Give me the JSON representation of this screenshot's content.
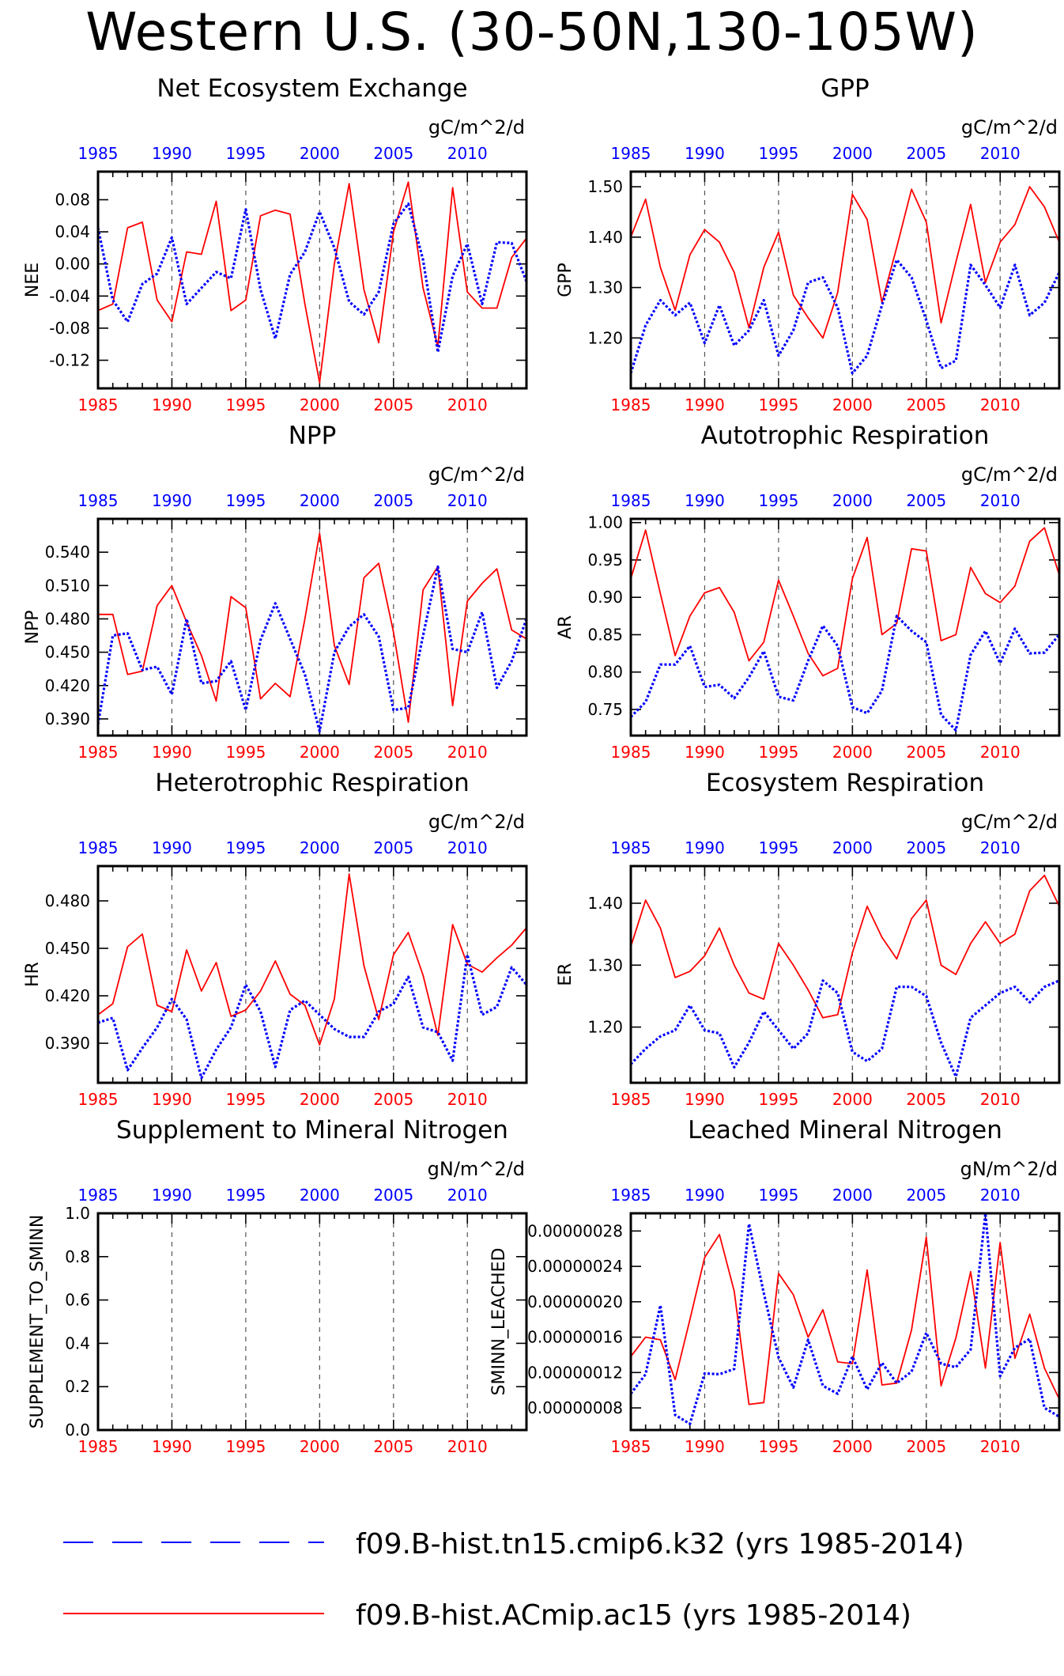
{
  "figure": {
    "title": "Western U.S. (30-50N,130-105W)",
    "colors": {
      "ctrl": "#0000ff",
      "expt": "#ff0000",
      "axis": "#000000",
      "grid": "#555555"
    }
  },
  "legend": [
    {
      "label": "f09.B-hist.tn15.cmip6.k32 (yrs 1985-2014)",
      "color": "#0000ff",
      "style": "dashed"
    },
    {
      "label": "f09.B-hist.ACmip.ac15 (yrs 1985-2014)",
      "color": "#ff0000",
      "style": "solid"
    }
  ],
  "chart_data": [
    {
      "type": "line",
      "title": "Net Ecosystem Exchange",
      "ylabel": "NEE",
      "units": "gC/m^2/d",
      "xlim": [
        1985,
        2014
      ],
      "ylim": [
        -0.155,
        0.115
      ],
      "yticks": [
        0.08,
        0.04,
        0.0,
        -0.04,
        -0.08,
        -0.12
      ],
      "ytick_labels": [
        "0.08",
        "0.04",
        "0.00",
        "-0.04",
        "-0.08",
        "-0.12"
      ],
      "x": [
        1985,
        1986,
        1987,
        1988,
        1989,
        1990,
        1991,
        1992,
        1993,
        1994,
        1995,
        1996,
        1997,
        1998,
        1999,
        2000,
        2001,
        2002,
        2003,
        2004,
        2005,
        2006,
        2007,
        2008,
        2009,
        2010,
        2011,
        2012,
        2013,
        2014
      ],
      "series": [
        {
          "color": "#ff0000",
          "style": "solid",
          "values": [
            -0.058,
            -0.05,
            0.045,
            0.052,
            -0.045,
            -0.072,
            0.015,
            0.012,
            0.078,
            -0.058,
            -0.045,
            0.06,
            0.067,
            0.062,
            -0.05,
            -0.148,
            0.0,
            0.1,
            -0.032,
            -0.098,
            0.04,
            0.102,
            -0.03,
            -0.103,
            0.095,
            -0.035,
            -0.055,
            -0.055,
            0.008,
            0.032
          ]
        },
        {
          "color": "#0000ff",
          "style": "dotted",
          "values": [
            0.045,
            -0.045,
            -0.072,
            -0.025,
            -0.012,
            0.033,
            -0.05,
            -0.03,
            -0.01,
            -0.018,
            0.068,
            -0.032,
            -0.093,
            -0.013,
            0.015,
            0.065,
            0.02,
            -0.047,
            -0.063,
            -0.035,
            0.05,
            0.075,
            0.005,
            -0.11,
            -0.015,
            0.025,
            -0.05,
            0.027,
            0.026,
            -0.022
          ]
        }
      ]
    },
    {
      "type": "line",
      "title": "GPP",
      "ylabel": "GPP",
      "units": "gC/m^2/d",
      "xlim": [
        1985,
        2014
      ],
      "ylim": [
        1.1,
        1.53
      ],
      "yticks": [
        1.5,
        1.4,
        1.3,
        1.2
      ],
      "ytick_labels": [
        "1.50",
        "1.40",
        "1.30",
        "1.20"
      ],
      "x": [
        1985,
        1986,
        1987,
        1988,
        1989,
        1990,
        1991,
        1992,
        1993,
        1994,
        1995,
        1996,
        1997,
        1998,
        1999,
        2000,
        2001,
        2002,
        2003,
        2004,
        2005,
        2006,
        2007,
        2008,
        2009,
        2010,
        2011,
        2012,
        2013,
        2014
      ],
      "series": [
        {
          "color": "#ff0000",
          "style": "solid",
          "values": [
            1.4,
            1.475,
            1.34,
            1.255,
            1.365,
            1.415,
            1.39,
            1.33,
            1.22,
            1.34,
            1.41,
            1.285,
            1.24,
            1.2,
            1.29,
            1.485,
            1.435,
            1.27,
            1.38,
            1.495,
            1.43,
            1.23,
            1.35,
            1.465,
            1.31,
            1.39,
            1.425,
            1.5,
            1.46,
            1.39
          ]
        },
        {
          "color": "#0000ff",
          "style": "dotted",
          "values": [
            1.13,
            1.225,
            1.275,
            1.245,
            1.27,
            1.19,
            1.265,
            1.185,
            1.215,
            1.275,
            1.165,
            1.215,
            1.31,
            1.32,
            1.26,
            1.13,
            1.165,
            1.265,
            1.355,
            1.32,
            1.235,
            1.14,
            1.155,
            1.345,
            1.305,
            1.26,
            1.345,
            1.245,
            1.27,
            1.33
          ]
        }
      ]
    },
    {
      "type": "line",
      "title": "NPP",
      "ylabel": "NPP",
      "units": "gC/m^2/d",
      "xlim": [
        1985,
        2014
      ],
      "ylim": [
        0.375,
        0.57
      ],
      "yticks": [
        0.54,
        0.51,
        0.48,
        0.45,
        0.42,
        0.39
      ],
      "ytick_labels": [
        "0.540",
        "0.510",
        "0.480",
        "0.450",
        "0.420",
        "0.390"
      ],
      "x": [
        1985,
        1986,
        1987,
        1988,
        1989,
        1990,
        1991,
        1992,
        1993,
        1994,
        1995,
        1996,
        1997,
        1998,
        1999,
        2000,
        2001,
        2002,
        2003,
        2004,
        2005,
        2006,
        2007,
        2008,
        2009,
        2010,
        2011,
        2012,
        2013,
        2014
      ],
      "series": [
        {
          "color": "#ff0000",
          "style": "solid",
          "values": [
            0.484,
            0.484,
            0.43,
            0.433,
            0.492,
            0.51,
            0.477,
            0.447,
            0.406,
            0.5,
            0.49,
            0.408,
            0.422,
            0.41,
            0.48,
            0.557,
            0.456,
            0.421,
            0.517,
            0.53,
            0.468,
            0.387,
            0.506,
            0.527,
            0.402,
            0.496,
            0.512,
            0.525,
            0.47,
            0.462
          ]
        },
        {
          "color": "#0000ff",
          "style": "dotted",
          "values": [
            0.385,
            0.465,
            0.467,
            0.434,
            0.437,
            0.412,
            0.48,
            0.422,
            0.424,
            0.442,
            0.398,
            0.461,
            0.494,
            0.462,
            0.43,
            0.379,
            0.45,
            0.473,
            0.484,
            0.464,
            0.398,
            0.4,
            0.465,
            0.527,
            0.453,
            0.45,
            0.486,
            0.418,
            0.442,
            0.48
          ]
        }
      ]
    },
    {
      "type": "line",
      "title": "Autotrophic Respiration",
      "ylabel": "AR",
      "units": "gC/m^2/d",
      "xlim": [
        1985,
        2014
      ],
      "ylim": [
        0.715,
        1.005
      ],
      "yticks": [
        1.0,
        0.95,
        0.9,
        0.85,
        0.8,
        0.75
      ],
      "ytick_labels": [
        "1.00",
        "0.95",
        "0.90",
        "0.85",
        "0.80",
        "0.75"
      ],
      "x": [
        1985,
        1986,
        1987,
        1988,
        1989,
        1990,
        1991,
        1992,
        1993,
        1994,
        1995,
        1996,
        1997,
        1998,
        1999,
        2000,
        2001,
        2002,
        2003,
        2004,
        2005,
        2006,
        2007,
        2008,
        2009,
        2010,
        2011,
        2012,
        2013,
        2014
      ],
      "series": [
        {
          "color": "#ff0000",
          "style": "solid",
          "values": [
            0.925,
            0.99,
            0.905,
            0.822,
            0.875,
            0.906,
            0.913,
            0.88,
            0.815,
            0.84,
            0.923,
            0.875,
            0.825,
            0.795,
            0.805,
            0.925,
            0.98,
            0.85,
            0.865,
            0.965,
            0.962,
            0.842,
            0.85,
            0.94,
            0.905,
            0.893,
            0.915,
            0.975,
            0.993,
            0.93
          ]
        },
        {
          "color": "#0000ff",
          "style": "dotted",
          "values": [
            0.74,
            0.76,
            0.81,
            0.81,
            0.835,
            0.78,
            0.783,
            0.765,
            0.793,
            0.828,
            0.767,
            0.762,
            0.815,
            0.862,
            0.835,
            0.753,
            0.745,
            0.775,
            0.875,
            0.855,
            0.84,
            0.743,
            0.722,
            0.823,
            0.855,
            0.812,
            0.858,
            0.825,
            0.826,
            0.85
          ]
        }
      ]
    },
    {
      "type": "line",
      "title": "Heterotrophic Respiration",
      "ylabel": "HR",
      "units": "gC/m^2/d",
      "xlim": [
        1985,
        2014
      ],
      "ylim": [
        0.365,
        0.502
      ],
      "yticks": [
        0.48,
        0.45,
        0.42,
        0.39
      ],
      "ytick_labels": [
        "0.480",
        "0.450",
        "0.420",
        "0.390"
      ],
      "x": [
        1985,
        1986,
        1987,
        1988,
        1989,
        1990,
        1991,
        1992,
        1993,
        1994,
        1995,
        1996,
        1997,
        1998,
        1999,
        2000,
        2001,
        2002,
        2003,
        2004,
        2005,
        2006,
        2007,
        2008,
        2009,
        2010,
        2011,
        2012,
        2013,
        2014
      ],
      "series": [
        {
          "color": "#ff0000",
          "style": "solid",
          "values": [
            0.408,
            0.415,
            0.451,
            0.459,
            0.414,
            0.41,
            0.449,
            0.423,
            0.441,
            0.407,
            0.411,
            0.423,
            0.442,
            0.421,
            0.414,
            0.389,
            0.418,
            0.497,
            0.439,
            0.405,
            0.446,
            0.46,
            0.433,
            0.395,
            0.465,
            0.44,
            0.435,
            0.444,
            0.452,
            0.463
          ]
        },
        {
          "color": "#0000ff",
          "style": "dotted",
          "values": [
            0.403,
            0.406,
            0.373,
            0.387,
            0.4,
            0.418,
            0.405,
            0.368,
            0.386,
            0.4,
            0.427,
            0.41,
            0.375,
            0.411,
            0.417,
            0.408,
            0.399,
            0.394,
            0.394,
            0.41,
            0.415,
            0.432,
            0.4,
            0.397,
            0.379,
            0.446,
            0.408,
            0.413,
            0.438,
            0.427
          ]
        }
      ]
    },
    {
      "type": "line",
      "title": "Ecosystem Respiration",
      "ylabel": "ER",
      "units": "gC/m^2/d",
      "xlim": [
        1985,
        2014
      ],
      "ylim": [
        1.11,
        1.46
      ],
      "yticks": [
        1.4,
        1.3,
        1.2
      ],
      "ytick_labels": [
        "1.40",
        "1.30",
        "1.20"
      ],
      "x": [
        1985,
        1986,
        1987,
        1988,
        1989,
        1990,
        1991,
        1992,
        1993,
        1994,
        1995,
        1996,
        1997,
        1998,
        1999,
        2000,
        2001,
        2002,
        2003,
        2004,
        2005,
        2006,
        2007,
        2008,
        2009,
        2010,
        2011,
        2012,
        2013,
        2014
      ],
      "series": [
        {
          "color": "#ff0000",
          "style": "solid",
          "values": [
            1.33,
            1.405,
            1.36,
            1.28,
            1.29,
            1.315,
            1.36,
            1.3,
            1.255,
            1.245,
            1.335,
            1.3,
            1.26,
            1.215,
            1.22,
            1.32,
            1.395,
            1.345,
            1.31,
            1.375,
            1.405,
            1.3,
            1.285,
            1.335,
            1.37,
            1.335,
            1.35,
            1.42,
            1.445,
            1.395
          ]
        },
        {
          "color": "#0000ff",
          "style": "dotted",
          "values": [
            1.14,
            1.165,
            1.185,
            1.195,
            1.235,
            1.195,
            1.19,
            1.135,
            1.175,
            1.225,
            1.195,
            1.165,
            1.19,
            1.275,
            1.255,
            1.16,
            1.145,
            1.165,
            1.265,
            1.265,
            1.25,
            1.175,
            1.12,
            1.215,
            1.235,
            1.255,
            1.265,
            1.24,
            1.265,
            1.275
          ]
        }
      ]
    },
    {
      "type": "line",
      "title": "Supplement to Mineral Nitrogen",
      "ylabel": "SUPPLEMENT_TO_SMINN",
      "units": "gN/m^2/d",
      "xlim": [
        1985,
        2014
      ],
      "ylim": [
        0.0,
        1.0
      ],
      "yticks": [
        1.0,
        0.8,
        0.6,
        0.4,
        0.2,
        0.0
      ],
      "ytick_labels": [
        "1.0",
        "0.8",
        "0.6",
        "0.4",
        "0.2",
        "0.0"
      ],
      "x": [],
      "series": []
    },
    {
      "type": "line",
      "title": "Leached Mineral Nitrogen",
      "ylabel": "SMINN_LEACHED",
      "units": "gN/m^2/d",
      "xlim": [
        1985,
        2014
      ],
      "ylim": [
        5.5e-08,
        3e-07
      ],
      "yticks": [
        2.8e-07,
        2.4e-07,
        2e-07,
        1.6e-07,
        1.2e-07,
        8e-08
      ],
      "ytick_labels": [
        "0.00000028",
        "0.00000024",
        "0.00000020",
        "0.00000016",
        "0.00000012",
        "0.00000008"
      ],
      "x": [
        1985,
        1986,
        1987,
        1988,
        1989,
        1990,
        1991,
        1992,
        1993,
        1994,
        1995,
        1996,
        1997,
        1998,
        1999,
        2000,
        2001,
        2002,
        2003,
        2004,
        2005,
        2006,
        2007,
        2008,
        2009,
        2010,
        2011,
        2012,
        2013,
        2014
      ],
      "series": [
        {
          "color": "#ff0000",
          "style": "solid",
          "values": [
            1.38e-07,
            1.6e-07,
            1.57e-07,
            1.12e-07,
            1.8e-07,
            2.5e-07,
            2.76e-07,
            2.12e-07,
            8.4e-08,
            8.6e-08,
            2.32e-07,
            2.08e-07,
            1.6e-07,
            1.91e-07,
            1.32e-07,
            1.3e-07,
            2.36e-07,
            1.06e-07,
            1.08e-07,
            1.68e-07,
            2.73e-07,
            1.05e-07,
            1.59e-07,
            2.34e-07,
            1.25e-07,
            2.67e-07,
            1.36e-07,
            1.86e-07,
            1.25e-07,
            9e-08
          ]
        },
        {
          "color": "#0000ff",
          "style": "dotted",
          "values": [
            9.6e-08,
            1.18e-07,
            1.96e-07,
            7.2e-08,
            6.2e-08,
            1.19e-07,
            1.18e-07,
            1.24e-07,
            2.88e-07,
            2.1e-07,
            1.37e-07,
            1.03e-07,
            1.57e-07,
            1.05e-07,
            9.6e-08,
            1.38e-07,
            1.01e-07,
            1.31e-07,
            1.08e-07,
            1.21e-07,
            1.65e-07,
            1.3e-07,
            1.26e-07,
            1.46e-07,
            3e-07,
            1.16e-07,
            1.48e-07,
            1.58e-07,
            8e-08,
            7e-08
          ]
        }
      ]
    }
  ]
}
